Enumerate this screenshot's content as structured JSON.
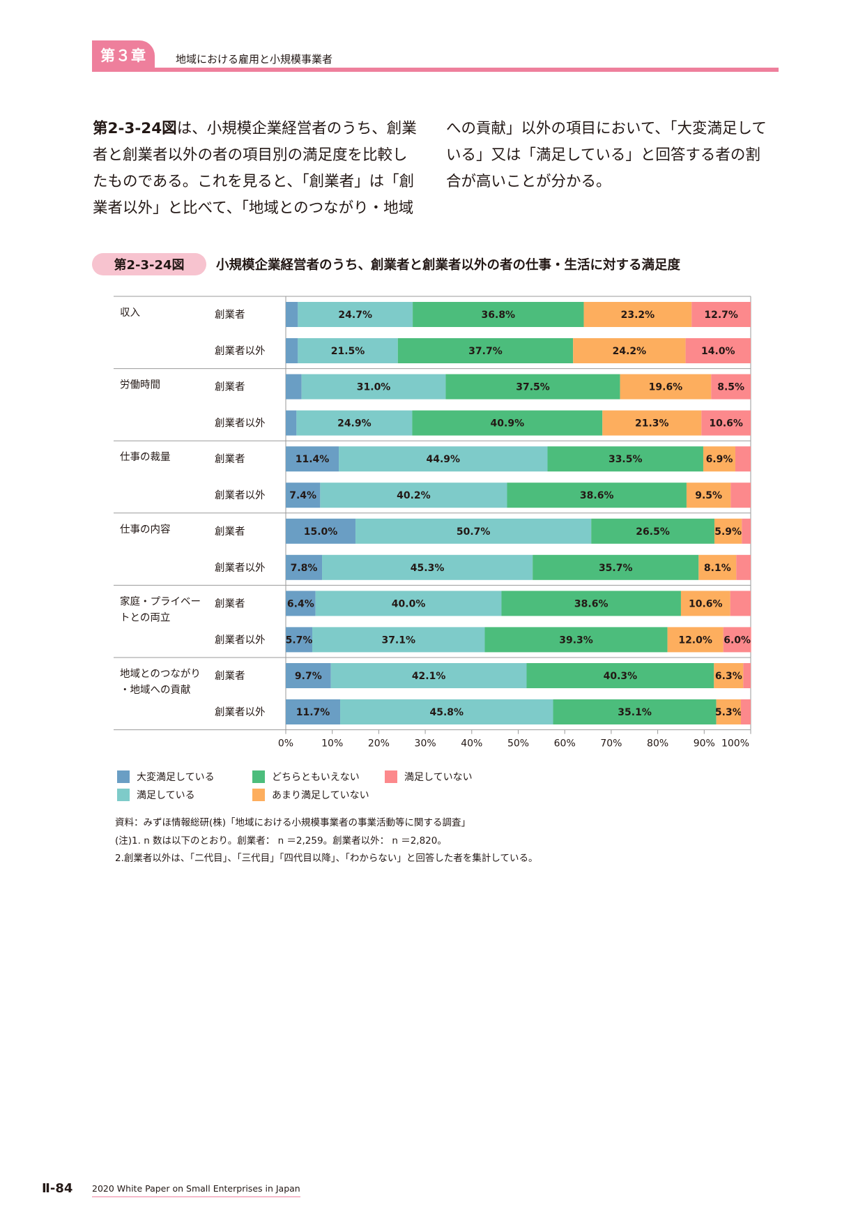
{
  "header": {
    "chapter": "第３章",
    "title": "地域における雇用と小規模事業者"
  },
  "body": {
    "col1_ref": "第2-3-24図",
    "col1_text": "は、小規模企業経営者のうち、創業者と創業者以外の者の項目別の満足度を比較したものである。これを見ると、「創業者」は「創業者以外」と比べて、「地域とのつながり・地域",
    "col2_text": "への貢献」以外の項目において、「大変満足している」又は「満足している」と回答する者の割合が高いことが分かる。"
  },
  "figure": {
    "label": "第2-3-24図",
    "title": "小規模企業経営者のうち、創業者と創業者以外の者の仕事・生活に対する満足度"
  },
  "chart_data": {
    "type": "bar",
    "orientation": "horizontal",
    "stacked": true,
    "xlim": [
      0,
      100
    ],
    "ticks": [
      "0%",
      "10%",
      "20%",
      "30%",
      "40%",
      "50%",
      "60%",
      "70%",
      "80%",
      "90%",
      "100%"
    ],
    "legend_placement": "bottom",
    "series": [
      {
        "name": "大変満足している",
        "color": "#6a9ec4"
      },
      {
        "name": "満足している",
        "color": "#7ecbc9"
      },
      {
        "name": "どちらともいえない",
        "color": "#4cbd7c"
      },
      {
        "name": "あまり満足していない",
        "color": "#fdae5e"
      },
      {
        "name": "満足していない",
        "color": "#fc898c"
      }
    ],
    "groups": [
      {
        "name": "収入",
        "rows": [
          {
            "label": "創業者",
            "values": [
              2.6,
              24.7,
              36.8,
              23.2,
              12.7
            ],
            "labels": [
              "",
              "24.7%",
              "36.8%",
              "23.2%",
              "12.7%"
            ]
          },
          {
            "label": "創業者以外",
            "values": [
              2.6,
              21.5,
              37.7,
              24.2,
              14.0
            ],
            "labels": [
              "",
              "21.5%",
              "37.7%",
              "24.2%",
              "14.0%"
            ]
          }
        ]
      },
      {
        "name": "労働時間",
        "rows": [
          {
            "label": "創業者",
            "values": [
              3.4,
              31.0,
              37.5,
              19.6,
              8.5
            ],
            "labels": [
              "",
              "31.0%",
              "37.5%",
              "19.6%",
              "8.5%"
            ]
          },
          {
            "label": "創業者以外",
            "values": [
              2.3,
              24.9,
              40.9,
              21.3,
              10.6
            ],
            "labels": [
              "",
              "24.9%",
              "40.9%",
              "21.3%",
              "10.6%"
            ]
          }
        ]
      },
      {
        "name": "仕事の裁量",
        "rows": [
          {
            "label": "創業者",
            "values": [
              11.4,
              44.9,
              33.5,
              6.9,
              3.3
            ],
            "labels": [
              "11.4%",
              "44.9%",
              "33.5%",
              "6.9%",
              ""
            ]
          },
          {
            "label": "創業者以外",
            "values": [
              7.4,
              40.2,
              38.6,
              9.5,
              4.3
            ],
            "labels": [
              "7.4%",
              "40.2%",
              "38.6%",
              "9.5%",
              ""
            ]
          }
        ]
      },
      {
        "name": "仕事の内容",
        "rows": [
          {
            "label": "創業者",
            "values": [
              15.0,
              50.7,
              26.5,
              5.9,
              1.9
            ],
            "labels": [
              "15.0%",
              "50.7%",
              "26.5%",
              "5.9%",
              ""
            ]
          },
          {
            "label": "創業者以外",
            "values": [
              7.8,
              45.3,
              35.7,
              8.1,
              3.1
            ],
            "labels": [
              "7.8%",
              "45.3%",
              "35.7%",
              "8.1%",
              ""
            ]
          }
        ]
      },
      {
        "name": "家庭・プライベートとの両立",
        "name_lines": [
          "家庭・プライベー",
          "トとの両立"
        ],
        "rows": [
          {
            "label": "創業者",
            "values": [
              6.4,
              40.0,
              38.6,
              10.6,
              4.4
            ],
            "labels": [
              "6.4%",
              "40.0%",
              "38.6%",
              "10.6%",
              ""
            ]
          },
          {
            "label": "創業者以外",
            "values": [
              5.7,
              37.1,
              39.3,
              12.0,
              6.0
            ],
            "labels": [
              "5.7%",
              "37.1%",
              "39.3%",
              "12.0%",
              "6.0%"
            ]
          }
        ]
      },
      {
        "name": "地域とのつながり・地域への貢献",
        "name_lines": [
          "地域とのつながり",
          "・地域への貢献"
        ],
        "rows": [
          {
            "label": "創業者",
            "values": [
              9.7,
              42.1,
              40.3,
              6.3,
              1.6
            ],
            "labels": [
              "9.7%",
              "42.1%",
              "40.3%",
              "6.3%",
              ""
            ]
          },
          {
            "label": "創業者以外",
            "values": [
              11.7,
              45.8,
              35.1,
              5.3,
              2.1
            ],
            "labels": [
              "11.7%",
              "45.8%",
              "35.1%",
              "5.3%",
              ""
            ]
          }
        ]
      }
    ]
  },
  "notes": {
    "source": "資料：みずほ情報総研(株)「地域における小規模事業者の事業活動等に関する調査」",
    "note1": "(注)1. n 数は以下のとおり。創業者： n ＝2,259。創業者以外： n ＝2,820。",
    "note2": "2.創業者以外は、「二代目」、「三代目」「四代目以降」、「わからない」と回答した者を集計している。"
  },
  "footer": {
    "page": "Ⅱ-84",
    "book": "2020 White Paper on Small Enterprises in Japan"
  }
}
